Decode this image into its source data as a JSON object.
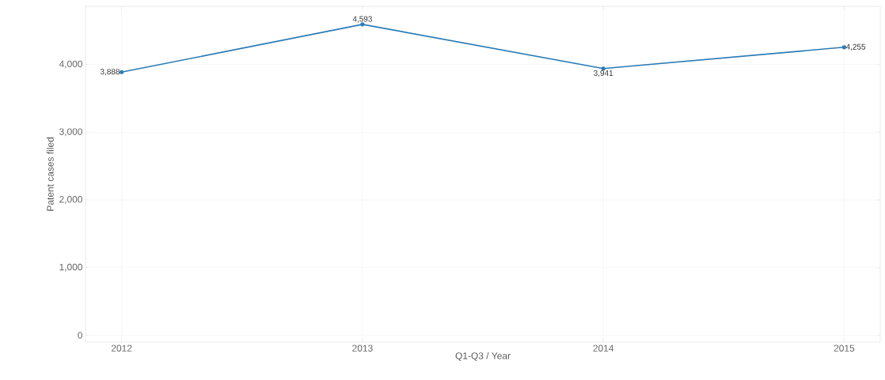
{
  "chart_data": {
    "type": "line",
    "xlabel": "Q1-Q3 / Year",
    "ylabel": "Patent cases filed",
    "x": [
      2012,
      2013,
      2014,
      2015
    ],
    "series": [
      {
        "color": "#2b7bb5",
        "values": [
          3888,
          4593,
          3941,
          4255
        ],
        "value_labels": [
          "3,888",
          "4,593",
          "3,941",
          "4,255"
        ]
      }
    ],
    "xlim": [
      2011.85,
      2015.15
    ],
    "xticks": [
      2012,
      2013,
      2014,
      2015
    ],
    "ylim": [
      -100,
      4860
    ],
    "yticks": [
      {
        "value": 0,
        "label": "0"
      },
      {
        "value": 1000,
        "label": "1,000"
      },
      {
        "value": 2000,
        "label": "2,000"
      },
      {
        "value": 3000,
        "label": "3,000"
      },
      {
        "value": 4000,
        "label": "4,000"
      }
    ],
    "grid": true,
    "marker": "circle",
    "line_style": "solid"
  }
}
